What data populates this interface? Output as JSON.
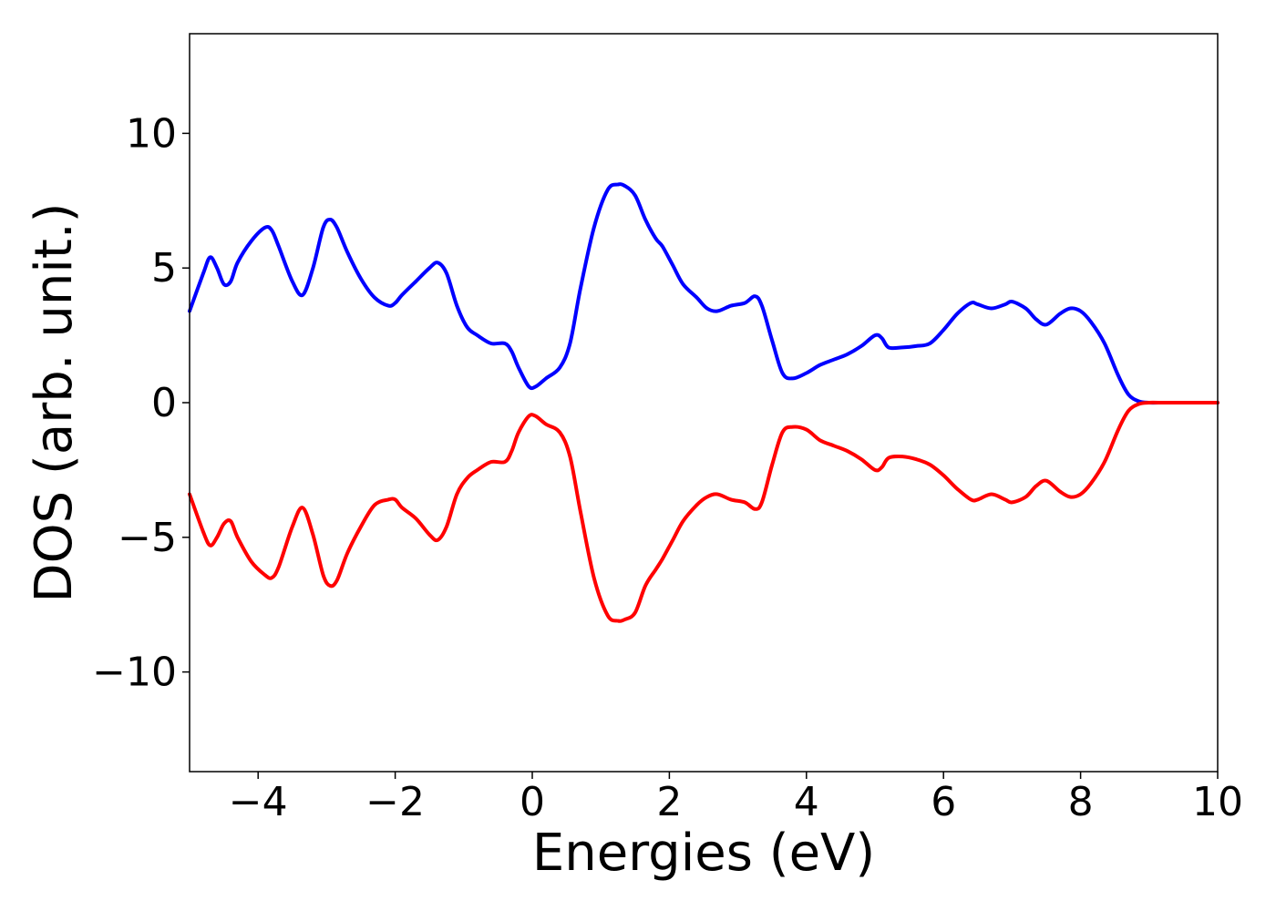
{
  "chart_data": {
    "type": "line",
    "title": "",
    "xlabel": "Energies (eV)",
    "ylabel": "DOS (arb. unit.)",
    "xlim": [
      -5,
      10
    ],
    "ylim": [
      -13.7,
      13.7
    ],
    "grid": false,
    "legend": "none",
    "x_ticks": [
      -4,
      -2,
      0,
      2,
      4,
      6,
      8,
      10
    ],
    "x_tick_labels": [
      "−4",
      "−2",
      "0",
      "2",
      "4",
      "6",
      "8",
      "10"
    ],
    "y_ticks": [
      10,
      5,
      0,
      -5,
      -10
    ],
    "y_tick_labels": [
      "10",
      "5",
      "0",
      "−5",
      "−10"
    ],
    "series": [
      {
        "color": "#0000ff",
        "x": [
          -5.0,
          -4.8,
          -4.7,
          -4.6,
          -4.5,
          -4.4,
          -4.3,
          -4.1,
          -3.9,
          -3.8,
          -3.7,
          -3.5,
          -3.35,
          -3.2,
          -3.05,
          -2.95,
          -2.85,
          -2.7,
          -2.5,
          -2.3,
          -2.1,
          -2.0,
          -1.9,
          -1.7,
          -1.5,
          -1.38,
          -1.25,
          -1.1,
          -0.95,
          -0.8,
          -0.6,
          -0.4,
          -0.3,
          -0.2,
          -0.05,
          0.05,
          0.2,
          0.4,
          0.55,
          0.7,
          0.9,
          1.1,
          1.25,
          1.35,
          1.5,
          1.65,
          1.8,
          1.9,
          2.05,
          2.2,
          2.4,
          2.55,
          2.7,
          2.9,
          3.1,
          3.25,
          3.35,
          3.5,
          3.65,
          3.8,
          4.0,
          4.2,
          4.4,
          4.6,
          4.8,
          5.0,
          5.1,
          5.2,
          5.4,
          5.6,
          5.8,
          6.0,
          6.2,
          6.4,
          6.5,
          6.7,
          6.9,
          7.0,
          7.2,
          7.35,
          7.5,
          7.7,
          7.85,
          8.0,
          8.15,
          8.35,
          8.55,
          8.7,
          8.85,
          9.0,
          9.2,
          10.0
        ],
        "y": [
          3.4,
          4.8,
          5.4,
          5.0,
          4.4,
          4.5,
          5.2,
          6.0,
          6.5,
          6.4,
          5.8,
          4.5,
          4.0,
          5.0,
          6.5,
          6.8,
          6.5,
          5.6,
          4.6,
          3.9,
          3.6,
          3.7,
          4.0,
          4.5,
          5.0,
          5.2,
          4.8,
          3.6,
          2.8,
          2.5,
          2.2,
          2.2,
          1.9,
          1.3,
          0.6,
          0.6,
          0.9,
          1.3,
          2.2,
          4.2,
          6.5,
          7.9,
          8.1,
          8.05,
          7.7,
          6.8,
          6.1,
          5.8,
          5.1,
          4.4,
          3.9,
          3.5,
          3.4,
          3.6,
          3.7,
          3.95,
          3.6,
          2.3,
          1.1,
          0.9,
          1.1,
          1.4,
          1.6,
          1.8,
          2.1,
          2.5,
          2.4,
          2.05,
          2.05,
          2.1,
          2.2,
          2.7,
          3.3,
          3.7,
          3.65,
          3.5,
          3.65,
          3.75,
          3.5,
          3.1,
          2.9,
          3.3,
          3.5,
          3.4,
          3.0,
          2.2,
          1.0,
          0.3,
          0.05,
          0.0,
          0.0,
          0.0
        ]
      },
      {
        "color": "#ff0000",
        "x": [
          -5.0,
          -4.8,
          -4.7,
          -4.6,
          -4.5,
          -4.4,
          -4.3,
          -4.1,
          -3.9,
          -3.8,
          -3.7,
          -3.5,
          -3.35,
          -3.2,
          -3.05,
          -2.95,
          -2.85,
          -2.7,
          -2.5,
          -2.3,
          -2.1,
          -2.0,
          -1.9,
          -1.7,
          -1.5,
          -1.38,
          -1.25,
          -1.1,
          -0.95,
          -0.8,
          -0.6,
          -0.4,
          -0.3,
          -0.2,
          -0.05,
          0.05,
          0.2,
          0.4,
          0.55,
          0.7,
          0.9,
          1.1,
          1.25,
          1.35,
          1.5,
          1.65,
          1.8,
          1.9,
          2.05,
          2.2,
          2.4,
          2.55,
          2.7,
          2.9,
          3.1,
          3.25,
          3.35,
          3.5,
          3.65,
          3.8,
          4.0,
          4.2,
          4.4,
          4.6,
          4.8,
          5.0,
          5.1,
          5.2,
          5.4,
          5.6,
          5.8,
          6.0,
          6.2,
          6.4,
          6.5,
          6.7,
          6.9,
          7.0,
          7.2,
          7.35,
          7.5,
          7.7,
          7.85,
          8.0,
          8.15,
          8.35,
          8.55,
          8.7,
          8.85,
          9.0,
          9.2,
          10.0
        ],
        "y": [
          -3.4,
          -4.8,
          -5.3,
          -5.0,
          -4.5,
          -4.4,
          -5.0,
          -5.9,
          -6.4,
          -6.5,
          -6.1,
          -4.6,
          -3.9,
          -4.9,
          -6.4,
          -6.8,
          -6.6,
          -5.6,
          -4.6,
          -3.8,
          -3.6,
          -3.6,
          -3.9,
          -4.3,
          -4.9,
          -5.1,
          -4.6,
          -3.4,
          -2.8,
          -2.5,
          -2.2,
          -2.2,
          -1.8,
          -1.1,
          -0.5,
          -0.5,
          -0.8,
          -1.1,
          -2.0,
          -4.0,
          -6.5,
          -7.9,
          -8.1,
          -8.05,
          -7.8,
          -6.8,
          -6.2,
          -5.8,
          -5.1,
          -4.4,
          -3.8,
          -3.5,
          -3.4,
          -3.6,
          -3.7,
          -3.95,
          -3.7,
          -2.3,
          -1.1,
          -0.9,
          -1.0,
          -1.4,
          -1.6,
          -1.8,
          -2.1,
          -2.5,
          -2.4,
          -2.05,
          -2.0,
          -2.1,
          -2.3,
          -2.7,
          -3.2,
          -3.6,
          -3.6,
          -3.4,
          -3.6,
          -3.7,
          -3.5,
          -3.1,
          -2.9,
          -3.3,
          -3.5,
          -3.4,
          -3.0,
          -2.2,
          -1.0,
          -0.3,
          -0.05,
          0.0,
          0.0,
          0.0
        ]
      }
    ]
  }
}
